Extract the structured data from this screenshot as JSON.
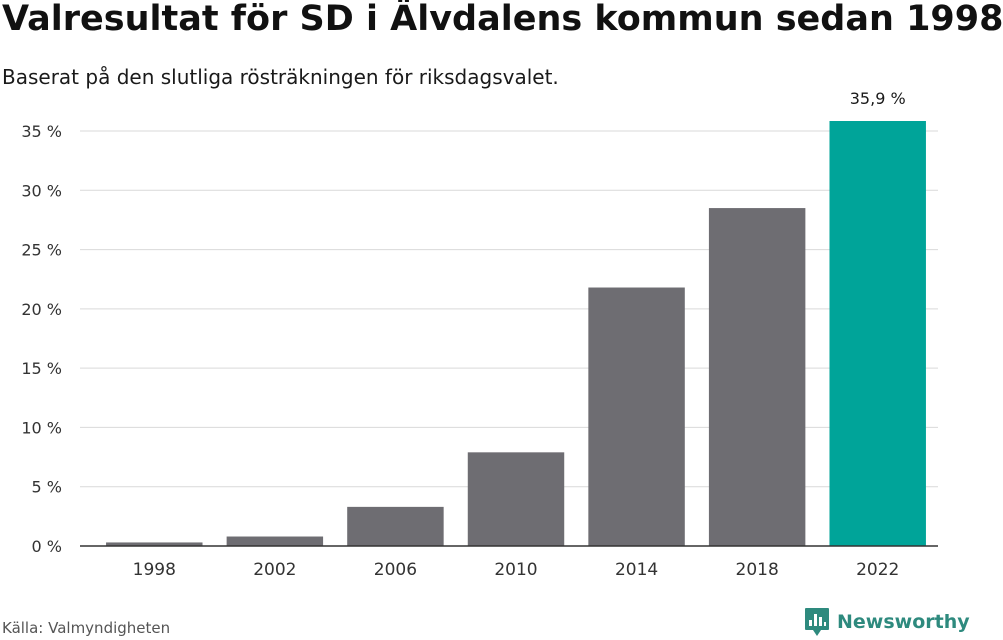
{
  "header": {
    "title": "Valresultat för SD i Älvdalens kommun sedan 1998",
    "subtitle": "Baserat på den slutliga rösträkningen för riksdagsvalet."
  },
  "footer": {
    "source": "Källa: Valmyndigheten",
    "brand": "Newsworthy",
    "brand_icon": "newsworthy-logo-icon"
  },
  "colors": {
    "bar": "#6e6d72",
    "highlight": "#00a499",
    "grid": "#d9d9d9",
    "axis": "#333333",
    "brand": "#2e8a7e"
  },
  "chart_data": {
    "type": "bar",
    "categories": [
      "1998",
      "2002",
      "2006",
      "2010",
      "2014",
      "2018",
      "2022"
    ],
    "values": [
      0.3,
      0.8,
      3.3,
      7.9,
      21.8,
      28.5,
      35.9
    ],
    "highlight_index": 6,
    "data_labels": [
      "",
      "",
      "",
      "",
      "",
      "",
      "35,9 %"
    ],
    "ylim": [
      0,
      35
    ],
    "yticks": [
      0,
      5,
      10,
      15,
      20,
      25,
      30,
      35
    ],
    "ytick_labels": [
      "0 %",
      "5 %",
      "10 %",
      "15 %",
      "20 %",
      "25 %",
      "30 %",
      "35 %"
    ],
    "xlabel": "",
    "ylabel": "",
    "grid": true,
    "legend": "none"
  }
}
